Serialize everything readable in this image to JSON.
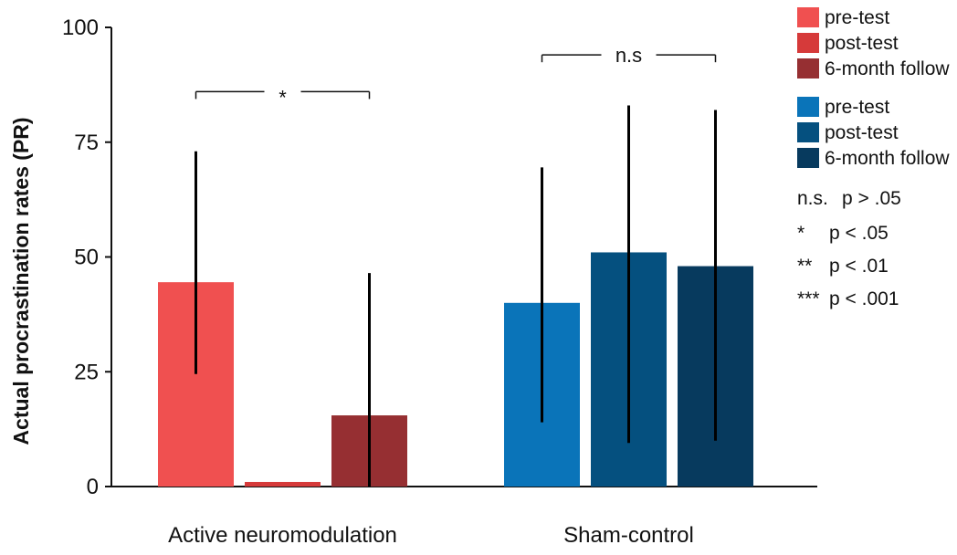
{
  "chart_data": {
    "type": "bar",
    "ylabel": "Actual procrastination rates (PR)",
    "xlabel": "",
    "ylim": [
      0,
      100
    ],
    "yticks": [
      0,
      25,
      50,
      75,
      100
    ],
    "grid": false,
    "legend_placement": "right",
    "groups": [
      {
        "name": "Active neuromodulation",
        "bars": [
          {
            "label": "pre-test",
            "value": 44.5,
            "err_low": 24.5,
            "err_high": 73,
            "color": "#f05050"
          },
          {
            "label": "post-test",
            "value": 1,
            "err_low": null,
            "err_high": null,
            "color": "#d63a3a"
          },
          {
            "label": "6-month follow",
            "value": 15.5,
            "err_low": 0,
            "err_high": 46.5,
            "color": "#962f32"
          }
        ],
        "significance": {
          "label": "*",
          "from_bar": 0,
          "to_bar": 2,
          "level": 86
        }
      },
      {
        "name": "Sham-control",
        "bars": [
          {
            "label": "pre-test",
            "value": 40,
            "err_low": 14,
            "err_high": 69.5,
            "color": "#0a74b9"
          },
          {
            "label": "post-test",
            "value": 51,
            "err_low": 9.5,
            "err_high": 83,
            "color": "#05507f"
          },
          {
            "label": "6-month follow",
            "value": 48,
            "err_low": 10,
            "err_high": 82,
            "color": "#073a5e"
          }
        ],
        "significance": {
          "label": "n.s",
          "from_bar": 0,
          "to_bar": 2,
          "level": 94
        }
      }
    ],
    "legend": [
      {
        "label": "pre-test",
        "color": "#f05050"
      },
      {
        "label": "post-test",
        "color": "#d63a3a"
      },
      {
        "label": "6-month follow",
        "color": "#962f32"
      },
      {
        "label": "pre-test",
        "color": "#0a74b9"
      },
      {
        "label": "post-test",
        "color": "#05507f"
      },
      {
        "label": "6-month follow",
        "color": "#073a5e"
      }
    ],
    "notes": [
      {
        "symbol": "n.s.",
        "text": "p > .05"
      },
      {
        "symbol": "*",
        "text": "p < .05"
      },
      {
        "symbol": "**",
        "text": "p < .01"
      },
      {
        "symbol": "***",
        "text": "p < .001"
      }
    ]
  }
}
